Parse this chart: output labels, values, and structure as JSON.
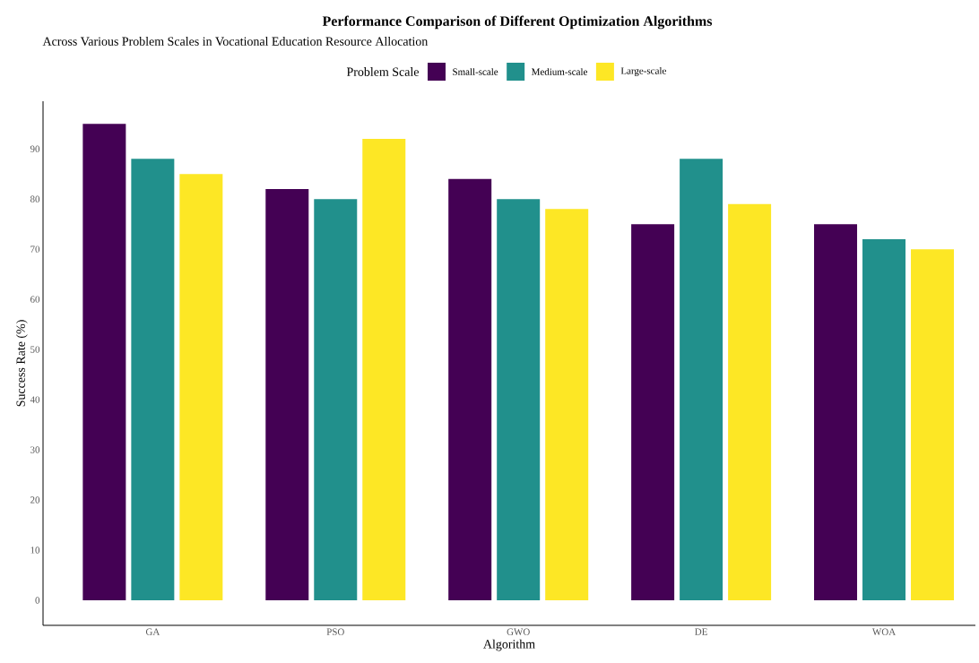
{
  "chart_data": {
    "type": "bar",
    "title": "Performance Comparison of Different Optimization Algorithms",
    "subtitle": "Across Various Problem Scales in Vocational Education Resource Allocation",
    "xlabel": "Algorithm",
    "ylabel": "Success Rate (%)",
    "legend_title": "Problem Scale",
    "legend": "top",
    "categories": [
      "GA",
      "PSO",
      "GWO",
      "DE",
      "WOA"
    ],
    "series": [
      {
        "name": "Small-scale",
        "color": "#440154",
        "values": [
          95,
          82,
          84,
          75,
          75
        ]
      },
      {
        "name": "Medium-scale",
        "color": "#21908c",
        "values": [
          88,
          80,
          80,
          88,
          72
        ]
      },
      {
        "name": "Large-scale",
        "color": "#fde725",
        "values": [
          85,
          92,
          78,
          79,
          70
        ]
      }
    ],
    "ylim": [
      -5,
      99.5
    ],
    "yticks": [
      0,
      10,
      20,
      30,
      40,
      50,
      60,
      70,
      80,
      90
    ],
    "grid": false
  }
}
